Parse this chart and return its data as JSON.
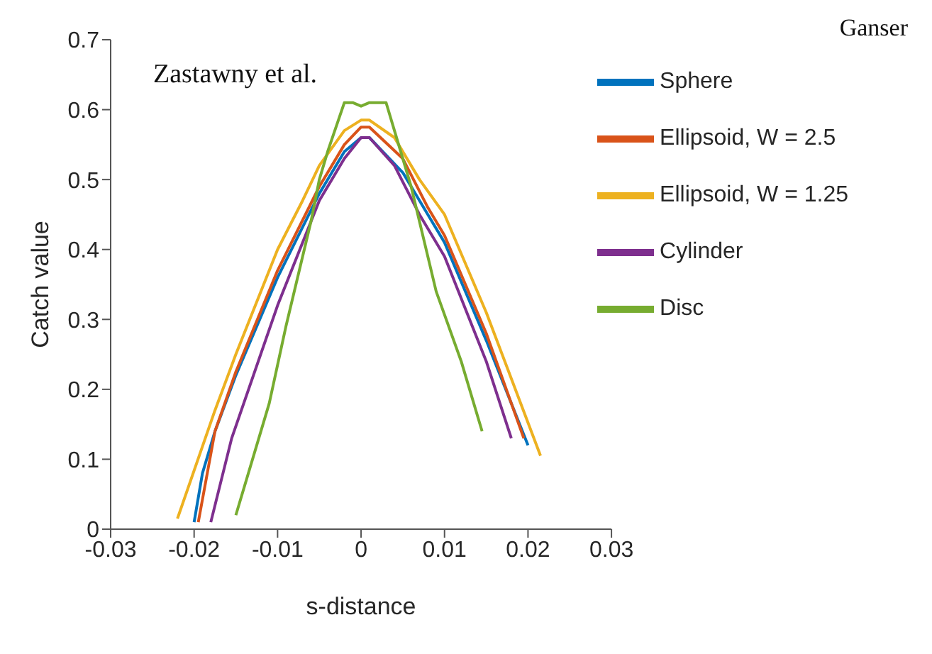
{
  "chart_data": {
    "type": "line",
    "xlabel": "s-distance",
    "ylabel": "Catch value",
    "annotations": [
      "Zastawny et al.",
      "Ganser"
    ],
    "xlim": [
      -0.03,
      0.03
    ],
    "xticks": [
      -0.03,
      -0.02,
      -0.01,
      0,
      0.01,
      0.02,
      0.03
    ],
    "ylim": [
      0,
      0.7
    ],
    "yticks": [
      0,
      0.1,
      0.2,
      0.3,
      0.4,
      0.5,
      0.6,
      0.7
    ],
    "grid": false,
    "legend": "top right",
    "marker": "none",
    "line_style": "solid",
    "series": [
      {
        "name": "Sphere",
        "color": "#0072bd",
        "x": [
          -0.02,
          -0.019,
          -0.0175,
          -0.015,
          -0.01,
          -0.005,
          -0.002,
          0,
          0.001,
          0.005,
          0.008,
          0.01,
          0.015,
          0.02
        ],
        "values": [
          0.01,
          0.08,
          0.14,
          0.22,
          0.36,
          0.48,
          0.54,
          0.56,
          0.56,
          0.51,
          0.45,
          0.41,
          0.27,
          0.12
        ]
      },
      {
        "name": "Ellipsoid, W = 2.5",
        "color": "#d95319",
        "x": [
          -0.0195,
          -0.0175,
          -0.015,
          -0.01,
          -0.005,
          -0.002,
          0,
          0.001,
          0.005,
          0.008,
          0.01,
          0.015,
          0.0195
        ],
        "values": [
          0.01,
          0.14,
          0.225,
          0.37,
          0.49,
          0.55,
          0.575,
          0.575,
          0.53,
          0.46,
          0.42,
          0.28,
          0.13
        ]
      },
      {
        "name": "Ellipsoid, W = 1.25",
        "color": "#edb120",
        "x": [
          -0.022,
          -0.0175,
          -0.015,
          -0.01,
          -0.007,
          -0.005,
          -0.002,
          0,
          0.001,
          0.004,
          0.007,
          0.01,
          0.015,
          0.0215
        ],
        "values": [
          0.015,
          0.17,
          0.25,
          0.4,
          0.47,
          0.52,
          0.57,
          0.585,
          0.585,
          0.56,
          0.5,
          0.45,
          0.31,
          0.105
        ]
      },
      {
        "name": "Cylinder",
        "color": "#7e2f8e",
        "x": [
          -0.018,
          -0.0155,
          -0.01,
          -0.005,
          -0.002,
          0,
          0.001,
          0.004,
          0.007,
          0.01,
          0.015,
          0.018
        ],
        "values": [
          0.01,
          0.13,
          0.32,
          0.47,
          0.53,
          0.56,
          0.56,
          0.52,
          0.45,
          0.39,
          0.24,
          0.13
        ]
      },
      {
        "name": "Disc",
        "color": "#77ac30",
        "x": [
          -0.015,
          -0.011,
          -0.009,
          -0.006,
          -0.005,
          -0.004,
          -0.002,
          -0.001,
          0,
          0.001,
          0.002,
          0.003,
          0.004,
          0.006,
          0.009,
          0.012,
          0.0145
        ],
        "values": [
          0.02,
          0.18,
          0.29,
          0.44,
          0.5,
          0.54,
          0.61,
          0.61,
          0.605,
          0.61,
          0.61,
          0.61,
          0.57,
          0.49,
          0.34,
          0.24,
          0.14
        ]
      }
    ]
  }
}
